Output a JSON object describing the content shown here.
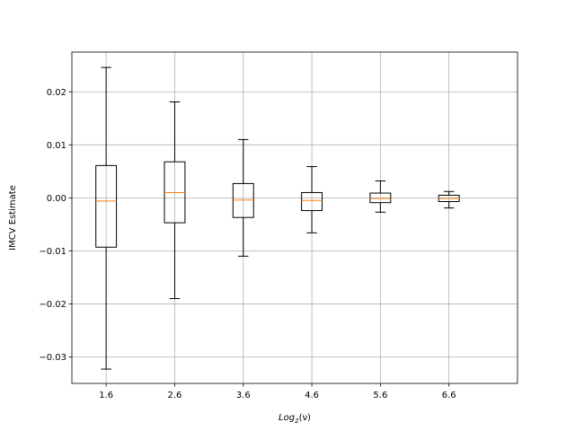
{
  "chart_data": {
    "type": "box",
    "xlabel_prefix": "Log",
    "xlabel_sub": "2",
    "xlabel_suffix": "(ν)",
    "ylabel": "IMCV Estimate",
    "categories": [
      "1.6",
      "2.6",
      "3.6",
      "4.6",
      "5.6",
      "6.6"
    ],
    "yticks": [
      "0.02",
      "0.01",
      "0.00",
      "−0.01",
      "−0.02",
      "−0.03"
    ],
    "ylim": [
      -0.035,
      0.0275
    ],
    "grid": true,
    "colors": {
      "box": "#000000",
      "median": "#ff7f0e",
      "grid": "#b0b0b0"
    },
    "boxes": [
      {
        "category": "1.6",
        "whisker_low": -0.0323,
        "q1": -0.0093,
        "median": -0.0006,
        "q3": 0.0061,
        "whisker_high": 0.0246
      },
      {
        "category": "2.6",
        "whisker_low": -0.019,
        "q1": -0.0047,
        "median": 0.001,
        "q3": 0.0068,
        "whisker_high": 0.0181
      },
      {
        "category": "3.6",
        "whisker_low": -0.011,
        "q1": -0.0037,
        "median": -0.0004,
        "q3": 0.0027,
        "whisker_high": 0.011
      },
      {
        "category": "4.6",
        "whisker_low": -0.0066,
        "q1": -0.0024,
        "median": -0.0005,
        "q3": 0.001,
        "whisker_high": 0.0059
      },
      {
        "category": "5.6",
        "whisker_low": -0.0027,
        "q1": -0.0009,
        "median": -0.0001,
        "q3": 0.0009,
        "whisker_high": 0.0032
      },
      {
        "category": "6.6",
        "whisker_low": -0.0019,
        "q1": -0.0007,
        "median": -0.0001,
        "q3": 0.0005,
        "whisker_high": 0.0012
      }
    ]
  }
}
